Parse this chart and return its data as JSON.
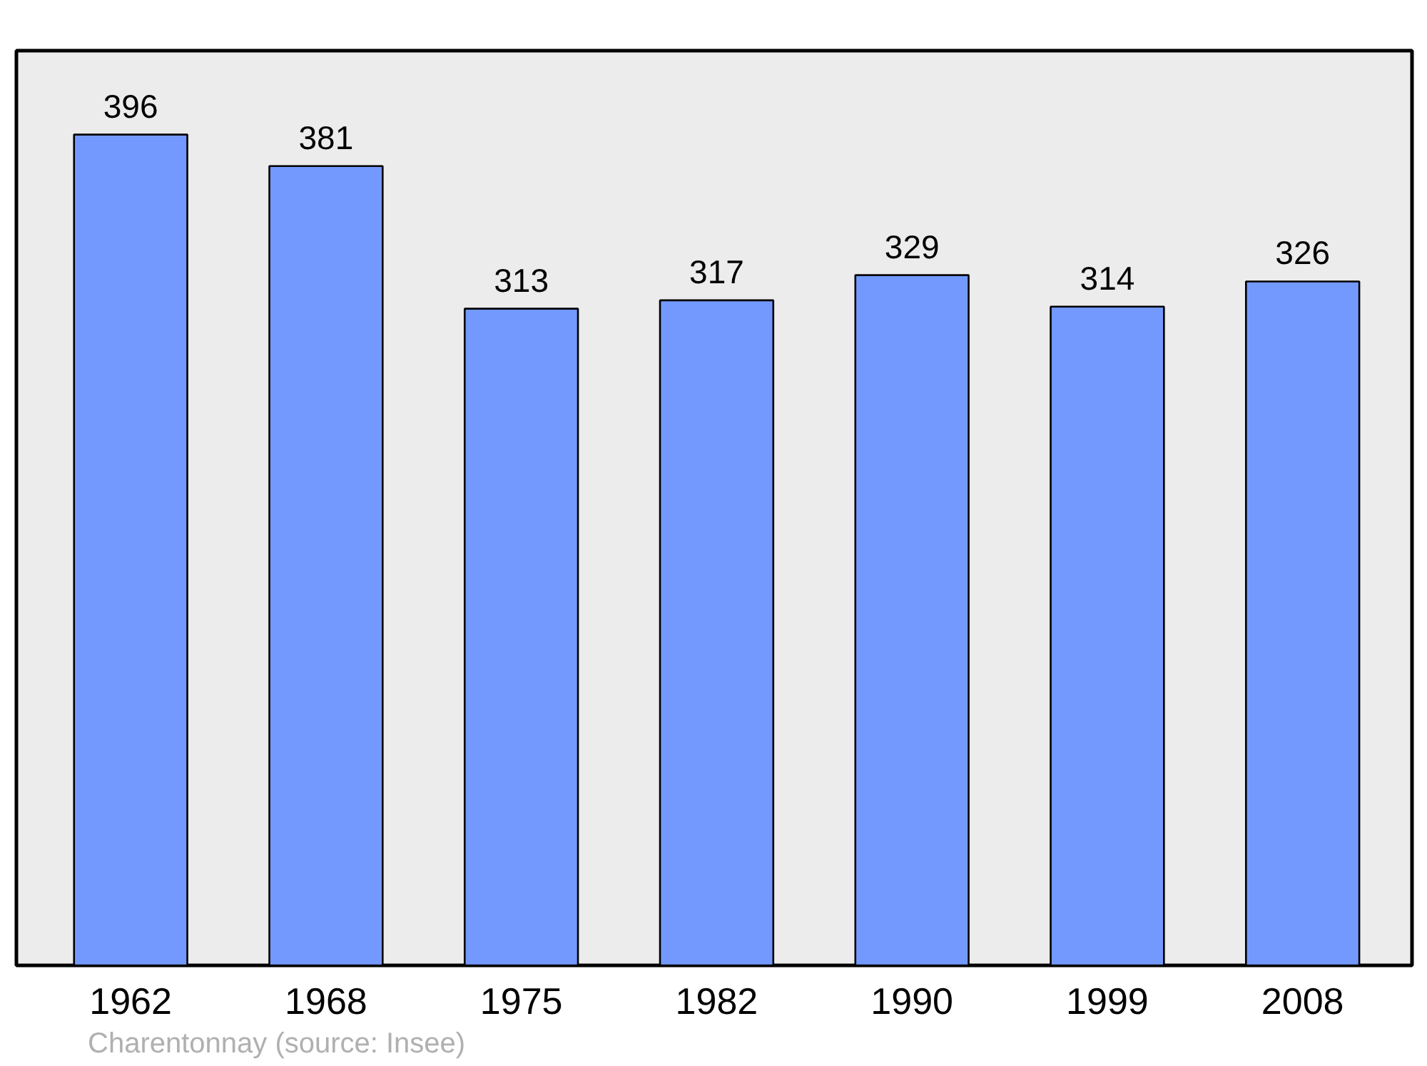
{
  "chart_data": {
    "type": "bar",
    "categories": [
      "1962",
      "1968",
      "1975",
      "1982",
      "1990",
      "1999",
      "2008"
    ],
    "values": [
      396,
      381,
      313,
      317,
      329,
      314,
      326
    ],
    "color": "#7399ff",
    "ylim": [
      0,
      436
    ],
    "data_labels": true,
    "grid": false,
    "annotations": [
      "Charentonnay    (source: Insee)"
    ]
  }
}
